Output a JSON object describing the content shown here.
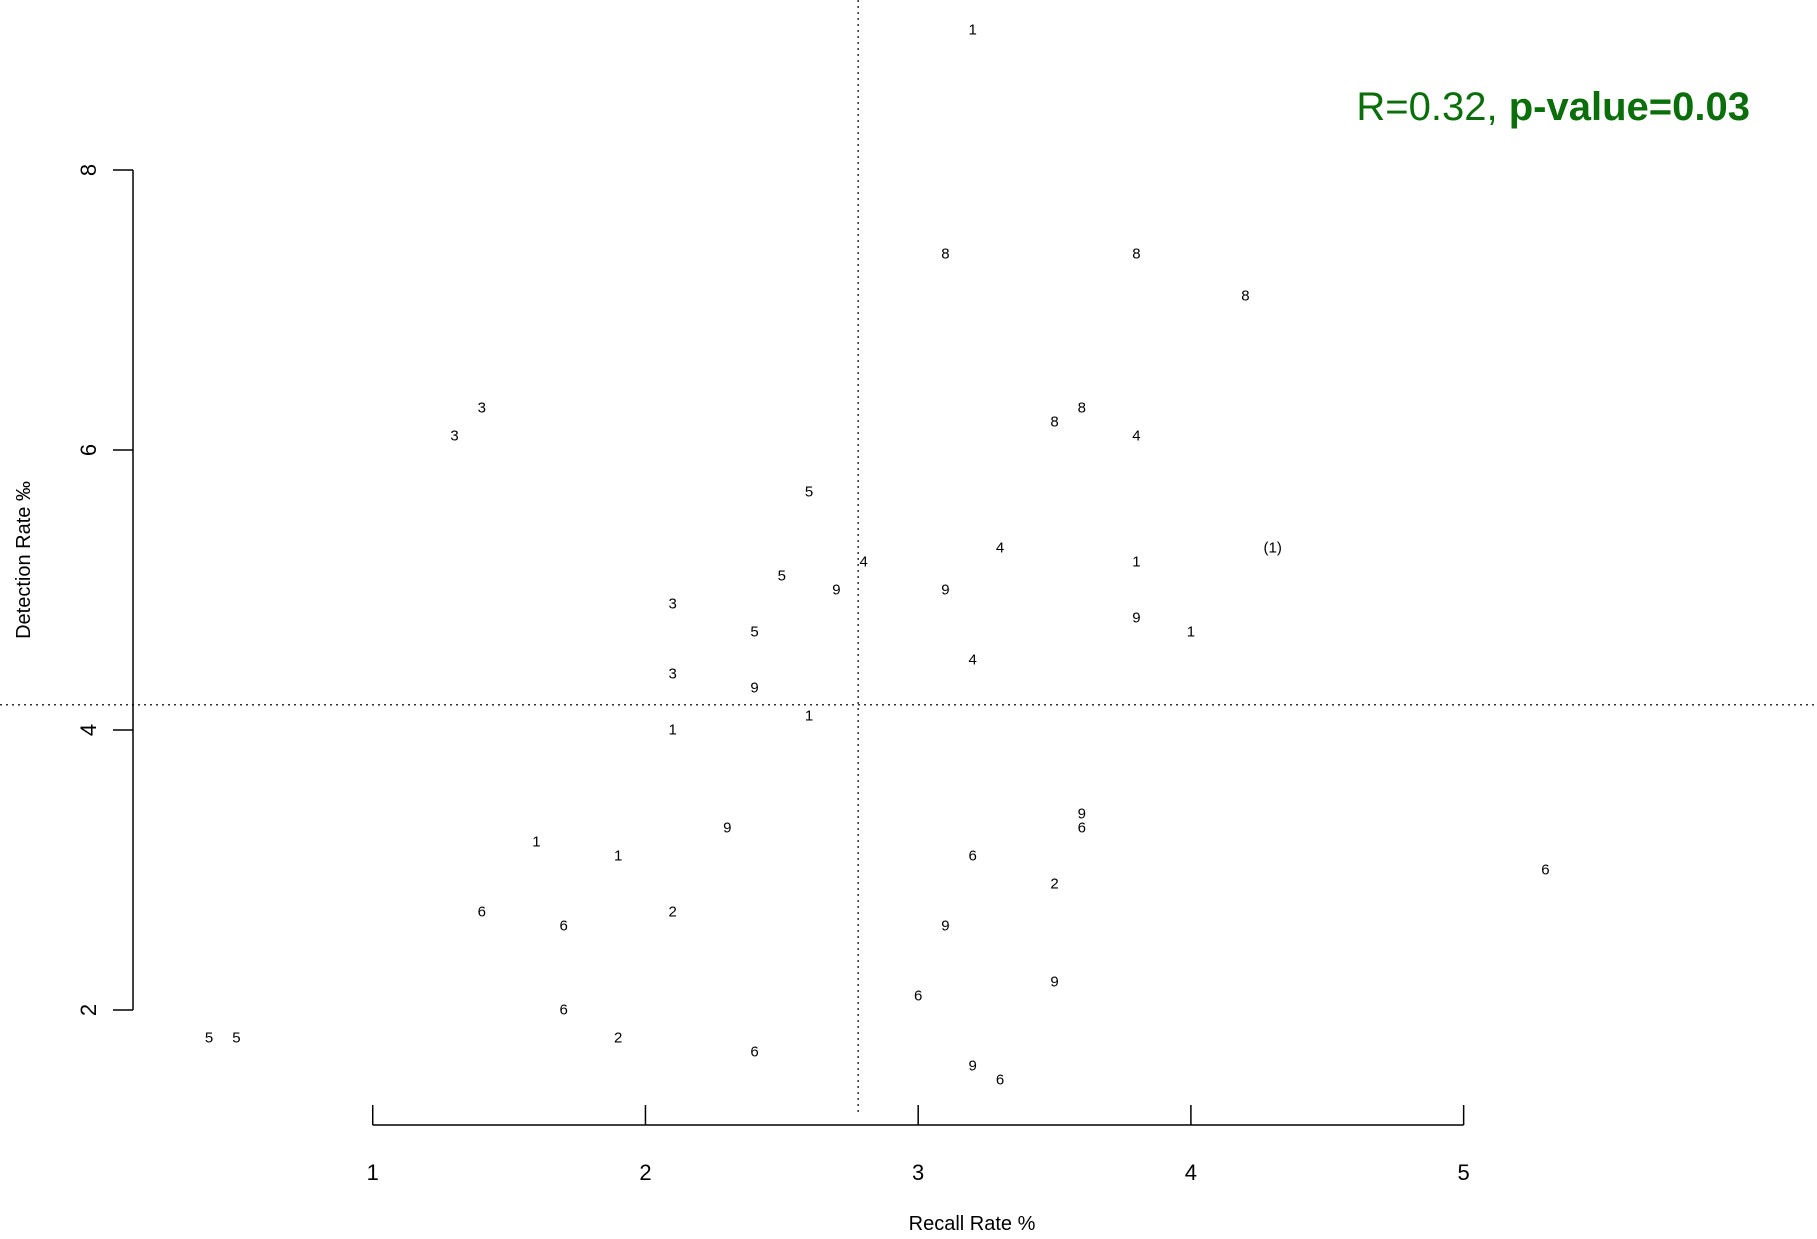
{
  "chart_data": {
    "type": "scatter",
    "title": "",
    "xlabel": "Recall Rate %",
    "ylabel": "Detection Rate ‰",
    "xlim": [
      0.0,
      5.5
    ],
    "ylim": [
      1.2,
      9.2
    ],
    "xticks": [
      1,
      2,
      3,
      4,
      5
    ],
    "yticks": [
      2,
      4,
      6,
      8
    ],
    "grid": false,
    "reference_lines": {
      "x_mean": 2.78,
      "y_mean": 4.18
    },
    "annotation": {
      "text_normal": "R=0.32, ",
      "text_bold": "p-value=0.03",
      "color": "#0a6e0a"
    },
    "points": [
      {
        "x": 3.2,
        "y": 9.0,
        "label": "1"
      },
      {
        "x": 3.1,
        "y": 7.4,
        "label": "8"
      },
      {
        "x": 3.8,
        "y": 7.4,
        "label": "8"
      },
      {
        "x": 4.2,
        "y": 7.1,
        "label": "8"
      },
      {
        "x": 1.4,
        "y": 6.3,
        "label": "3"
      },
      {
        "x": 1.3,
        "y": 6.1,
        "label": "3"
      },
      {
        "x": 3.5,
        "y": 6.2,
        "label": "8"
      },
      {
        "x": 3.6,
        "y": 6.3,
        "label": "8"
      },
      {
        "x": 3.8,
        "y": 6.1,
        "label": "4"
      },
      {
        "x": 2.6,
        "y": 5.7,
        "label": "5"
      },
      {
        "x": 3.3,
        "y": 5.3,
        "label": "4"
      },
      {
        "x": 4.3,
        "y": 5.3,
        "label": "(1)"
      },
      {
        "x": 2.8,
        "y": 5.2,
        "label": "4"
      },
      {
        "x": 3.8,
        "y": 5.2,
        "label": "1"
      },
      {
        "x": 2.5,
        "y": 5.1,
        "label": "5"
      },
      {
        "x": 2.7,
        "y": 5.0,
        "label": "9"
      },
      {
        "x": 3.1,
        "y": 5.0,
        "label": "9"
      },
      {
        "x": 2.1,
        "y": 4.9,
        "label": "3"
      },
      {
        "x": 3.8,
        "y": 4.8,
        "label": "9"
      },
      {
        "x": 2.4,
        "y": 4.7,
        "label": "5"
      },
      {
        "x": 4.0,
        "y": 4.7,
        "label": "1"
      },
      {
        "x": 3.2,
        "y": 4.5,
        "label": "4"
      },
      {
        "x": 2.1,
        "y": 4.4,
        "label": "3"
      },
      {
        "x": 2.4,
        "y": 4.3,
        "label": "9"
      },
      {
        "x": 2.6,
        "y": 4.1,
        "label": "1"
      },
      {
        "x": 2.1,
        "y": 4.0,
        "label": "1"
      },
      {
        "x": 3.6,
        "y": 3.4,
        "label": "9"
      },
      {
        "x": 3.6,
        "y": 3.3,
        "label": "6"
      },
      {
        "x": 2.3,
        "y": 3.3,
        "label": "9"
      },
      {
        "x": 1.6,
        "y": 3.2,
        "label": "1"
      },
      {
        "x": 1.9,
        "y": 3.1,
        "label": "1"
      },
      {
        "x": 3.2,
        "y": 3.1,
        "label": "6"
      },
      {
        "x": 5.3,
        "y": 3.0,
        "label": "6"
      },
      {
        "x": 3.5,
        "y": 2.9,
        "label": "2"
      },
      {
        "x": 1.4,
        "y": 2.7,
        "label": "6"
      },
      {
        "x": 2.1,
        "y": 2.7,
        "label": "2"
      },
      {
        "x": 1.7,
        "y": 2.6,
        "label": "6"
      },
      {
        "x": 3.1,
        "y": 2.6,
        "label": "9"
      },
      {
        "x": 3.5,
        "y": 2.2,
        "label": "9"
      },
      {
        "x": 3.0,
        "y": 2.1,
        "label": "6"
      },
      {
        "x": 1.7,
        "y": 2.0,
        "label": "6"
      },
      {
        "x": 0.4,
        "y": 1.8,
        "label": "5"
      },
      {
        "x": 0.5,
        "y": 1.8,
        "label": "5"
      },
      {
        "x": 1.9,
        "y": 1.8,
        "label": "2"
      },
      {
        "x": 2.4,
        "y": 1.7,
        "label": "6"
      },
      {
        "x": 3.2,
        "y": 1.6,
        "label": "9"
      },
      {
        "x": 3.3,
        "y": 1.5,
        "label": "6"
      }
    ]
  }
}
